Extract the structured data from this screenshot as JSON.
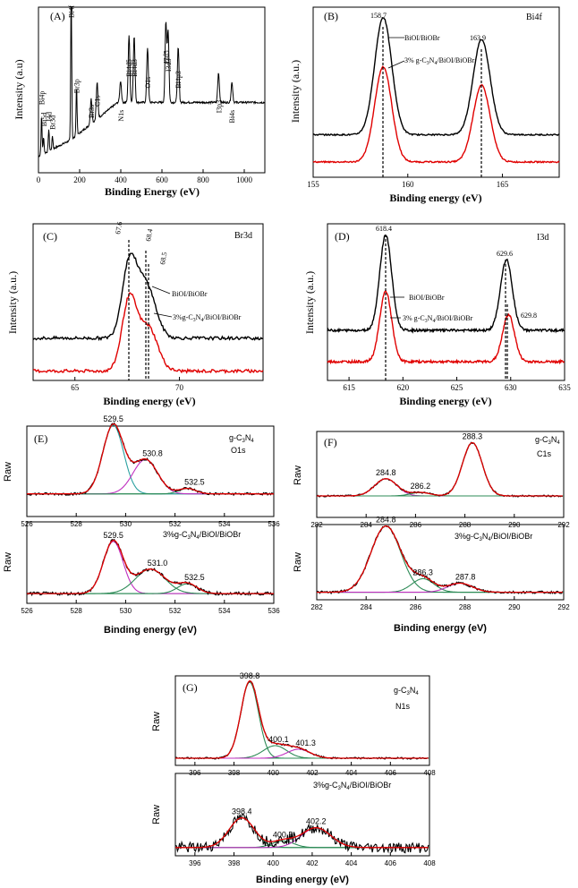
{
  "chart_data": [
    {
      "panel": "(A)",
      "type": "line",
      "xlabel": "Binding Energy (eV)",
      "ylabel": "Intensity (a.u)",
      "xlim": [
        0,
        1100
      ],
      "xticks": [
        "0",
        "200",
        "400",
        "600",
        "800",
        "1000"
      ],
      "peaks": [
        {
          "label": "Bi4p",
          "x": 15,
          "y": 0.35
        },
        {
          "label": "Bi5d",
          "x": 25,
          "y": 0.22
        },
        {
          "label": "I4d",
          "x": 50,
          "y": 0.25
        },
        {
          "label": "Br3d",
          "x": 68,
          "y": 0.2
        },
        {
          "label": "Bi4f",
          "x": 159,
          "y": 0.98
        },
        {
          "label": "Br3p",
          "x": 185,
          "y": 0.42
        },
        {
          "label": "Br3s",
          "x": 256,
          "y": 0.27
        },
        {
          "label": "C1s",
          "x": 285,
          "y": 0.34
        },
        {
          "label": "N1s",
          "x": 399,
          "y": 0.25
        },
        {
          "label": "Bi4d5",
          "x": 440,
          "y": 0.52
        },
        {
          "label": "Bi4d3",
          "x": 465,
          "y": 0.52
        },
        {
          "label": "O1s",
          "x": 530,
          "y": 0.45
        },
        {
          "label": "I3d5",
          "x": 619,
          "y": 0.6
        },
        {
          "label": "I3d3",
          "x": 630,
          "y": 0.55
        },
        {
          "label": "Bi4p3",
          "x": 679,
          "y": 0.45
        },
        {
          "label": "I3p3",
          "x": 875,
          "y": 0.3
        },
        {
          "label": "Bi4s",
          "x": 940,
          "y": 0.24
        }
      ]
    },
    {
      "panel": "(B)",
      "type": "line",
      "title": "Bi4f",
      "xlabel": "Binding energy (eV)",
      "ylabel": "Intensity (a.u.)",
      "xlim": [
        155,
        168
      ],
      "xticks": [
        "155",
        "160",
        "165"
      ],
      "peak_labels": [
        "158.7",
        "163.9"
      ],
      "series": [
        {
          "name": "BiOI/BiOBr",
          "peaks": [
            158.7,
            163.9
          ]
        },
        {
          "name": "3% g-C3N4/BiOI/BiOBr",
          "peaks": [
            158.7,
            163.9
          ]
        }
      ],
      "legend": [
        "BiOI/BiOBr",
        "3% g-C"
      ]
    },
    {
      "panel": "(C)",
      "type": "line",
      "title": "Br3d",
      "xlabel": "Binding energy (eV)",
      "ylabel": "Intensity (a.u.)",
      "xlim": [
        63,
        74
      ],
      "xticks": [
        "65",
        "70"
      ],
      "peak_labels": [
        "67.6",
        "68.4",
        "68.5"
      ],
      "series": [
        {
          "name": "BiOI/BiOBr",
          "peaks": [
            67.6,
            68.4
          ]
        },
        {
          "name": "3%g-C3N4/BiOI/BiOBr",
          "peaks": [
            67.6,
            68.5
          ]
        }
      ],
      "legend": [
        "BiOI/BiOBr",
        "3%g-C"
      ]
    },
    {
      "panel": "(D)",
      "type": "line",
      "title": "I3d",
      "xlabel": "Binding energy (eV)",
      "ylabel": "Intensity (a.u.)",
      "xlim": [
        613,
        635
      ],
      "xticks": [
        "615",
        "620",
        "625",
        "630",
        "635"
      ],
      "peak_labels": [
        "618.4",
        "629.6",
        "629.8"
      ],
      "series": [
        {
          "name": "BiOI/BiOBr",
          "peaks": [
            618.4,
            629.6
          ]
        },
        {
          "name": "3% g-C3N4/BiOI/BiOBr",
          "peaks": [
            618.4,
            629.8
          ]
        }
      ],
      "legend": [
        "BiOI/BiOBr",
        "3% g-C"
      ]
    },
    {
      "panel": "(E)",
      "type": "line",
      "title": "O1s",
      "xlabel": "",
      "ylabel": "Raw",
      "xlim": [
        526,
        536
      ],
      "xticks": [
        "526",
        "528",
        "530",
        "532",
        "534",
        "536"
      ],
      "top": {
        "sample": "g-C",
        "peaks": [
          529.5,
          530.8,
          532.5
        ],
        "peak_labels": [
          "529.5",
          "530.8",
          "532.5"
        ]
      },
      "bottom": {
        "sample": "3%g-C",
        "peaks": [
          529.5,
          531.0,
          532.5
        ],
        "peak_labels": [
          "529.5",
          "531.0",
          "532.5"
        ]
      }
    },
    {
      "panel": "(F)",
      "type": "line",
      "title": "C1s",
      "xlabel": "Binding energy (eV)",
      "ylabel": "Raw",
      "xlim": [
        282,
        292
      ],
      "xticks": [
        "282",
        "284",
        "286",
        "288",
        "290",
        "292"
      ],
      "top": {
        "sample": "g-C",
        "peaks": [
          284.8,
          286.2,
          288.3
        ],
        "peak_labels": [
          "284.8",
          "286.2",
          "288.3"
        ]
      },
      "bottom": {
        "sample": "3%g-C",
        "peaks": [
          284.8,
          286.3,
          287.8
        ],
        "peak_labels": [
          "284.8",
          "286.3",
          "287.8"
        ]
      }
    },
    {
      "panel": "(G)",
      "type": "line",
      "title": "N1s",
      "xlabel": "Binding energy (eV)",
      "ylabel": "Raw",
      "xlim": [
        395,
        408
      ],
      "xticks": [
        "396",
        "398",
        "400",
        "402",
        "404",
        "406",
        "408"
      ],
      "top": {
        "sample": "g-C",
        "peaks": [
          398.8,
          400.1,
          401.3
        ],
        "peak_labels": [
          "398.8",
          "400.1",
          "401.3"
        ]
      },
      "bottom": {
        "sample": "3%g-C",
        "peaks": [
          398.4,
          400.5,
          402.2
        ],
        "peak_labels": [
          "398.4",
          "400.5",
          "402.2"
        ]
      }
    }
  ],
  "text": {
    "A": {
      "panel": "(A)",
      "ylabel": "Intensity (a.u)",
      "xlabel": "Binding Energy (eV)"
    },
    "B": {
      "panel": "(B)",
      "title": "Bi4f",
      "ylabel": "Intensity (a.u.)",
      "xlabel": "Binding energy (eV)",
      "p1": "158.7",
      "p2": "163.9",
      "leg1": "BiOI/BiOBr",
      "leg2a": "3% g-C",
      "leg2b": "3",
      "leg2c": "N",
      "leg2d": "4",
      "leg2e": "/BiOI/BiOBr"
    },
    "C": {
      "panel": "(C)",
      "title": "Br3d",
      "ylabel": "Intensity (a.u.)",
      "xlabel": "Binding energy (eV)",
      "p1": "67.6",
      "p2": "68.4",
      "p3": "68.5",
      "leg1": "BiOI/BiOBr",
      "leg2a": "3%g-C",
      "leg2b": "3",
      "leg2c": "N",
      "leg2d": "4",
      "leg2e": "/BiOI/BiOBr"
    },
    "D": {
      "panel": "(D)",
      "title": "I3d",
      "ylabel": "Intensity (a.u.)",
      "xlabel": "Binding energy (eV)",
      "p1": "618.4",
      "p2": "629.6",
      "p3": "629.8",
      "leg1": "BiOI/BiOBr",
      "leg2a": "3% g-C",
      "leg2b": "3",
      "leg2c": "N",
      "leg2d": "4",
      "leg2e": "/BiOI/BiOBr"
    },
    "E": {
      "panel": "(E)",
      "title": "O1s",
      "ylabel": "Raw",
      "s1a": "g-C",
      "s1b": "3",
      "s1c": "N",
      "s1d": "4",
      "s2a": "3%g-C",
      "s2b": "3",
      "s2c": "N",
      "s2d": "4",
      "s2e": "/BiOI/BiOBr"
    },
    "F": {
      "panel": "(F)",
      "title": "C1s",
      "ylabel": "Raw",
      "xlabel": "Binding energy (eV)",
      "s1a": "g-C",
      "s1b": "3",
      "s1c": "N",
      "s1d": "4",
      "s2a": "3%g-C",
      "s2b": "3",
      "s2c": "N",
      "s2d": "4",
      "s2e": "/BiOI/BiOBr"
    },
    "G": {
      "panel": "(G)",
      "title": "N1s",
      "ylabel": "Raw",
      "xlabel": "Binding energy (eV)",
      "s1a": "g-C",
      "s1b": "3",
      "s1c": "N",
      "s1d": "4",
      "s2a": "3%g-C",
      "s2b": "3",
      "s2c": "N",
      "s2d": "4",
      "s2e": "/BiOI/BiOBr"
    },
    "E_bottom_xlabel": "Binding energy (eV)"
  },
  "colors": {
    "top_curve": "#000000",
    "bottom_curve": "#e00000",
    "fit_green": "#2e8b57",
    "fit_magenta": "#c030c0",
    "fit_cyan": "#2aa0a0",
    "envelope": "#e00000"
  }
}
